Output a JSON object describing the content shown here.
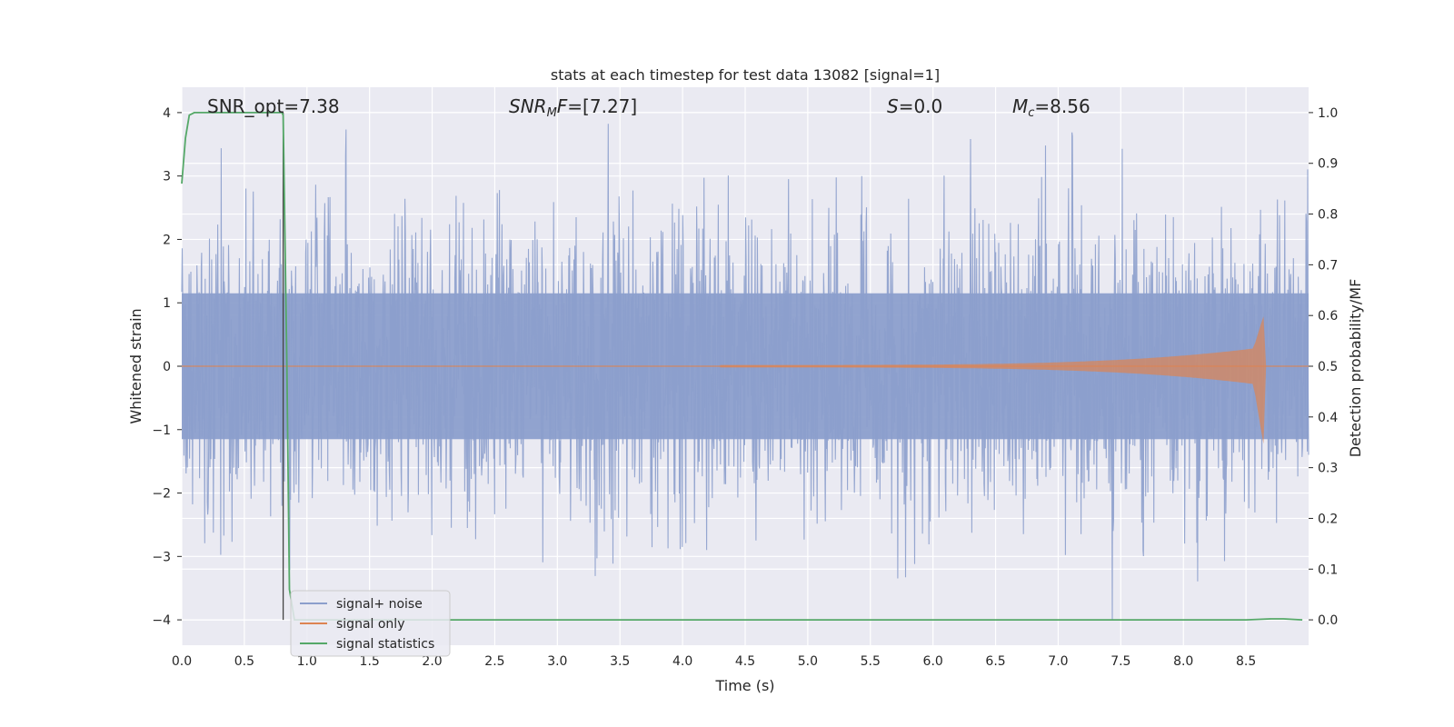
{
  "chart_data": {
    "type": "line",
    "title": "stats at each timestep for test data 13082 [signal=1]",
    "xlabel": "Time (s)",
    "ylabel": "Whitened strain",
    "ylabel_right": "Detection probability/MF",
    "xlim": [
      0,
      9
    ],
    "ylim": [
      -4.4,
      4.4
    ],
    "ylim_right": [
      -0.05,
      1.05
    ],
    "x_ticks": [
      "0.0",
      "0.5",
      "1.0",
      "1.5",
      "2.0",
      "2.5",
      "3.0",
      "3.5",
      "4.0",
      "4.5",
      "5.0",
      "5.5",
      "6.0",
      "6.5",
      "7.0",
      "7.5",
      "8.0",
      "8.5"
    ],
    "y_ticks": [
      "−4",
      "−3",
      "−2",
      "−1",
      "0",
      "1",
      "2",
      "3",
      "4"
    ],
    "y_ticks_right": [
      "0.0",
      "0.1",
      "0.2",
      "0.3",
      "0.4",
      "0.5",
      "0.6",
      "0.7",
      "0.8",
      "0.9",
      "1.0"
    ],
    "grid": true,
    "legend_position": "lower-left",
    "annotations": [
      "SNR_opt=7.38",
      "SNR_MF=[7.27]",
      "S=0.0",
      "M_c=8.56"
    ],
    "vline_x": 0.81,
    "series": [
      {
        "name": "signal+ noise",
        "color": "#8c9fcc",
        "kind": "noise",
        "amplitude_sigma": 1.0,
        "range": [
          -4.0,
          4.0
        ]
      },
      {
        "name": "signal only",
        "color": "#dd8452",
        "kind": "chirp",
        "start_x": 4.3,
        "merger_x": 8.64,
        "peak_high": 0.8,
        "peak_low": -1.25
      },
      {
        "name": "signal statistics",
        "color": "#55a868",
        "axis": "right",
        "x": [
          0.0,
          0.03,
          0.06,
          0.1,
          0.15,
          0.3,
          0.5,
          0.7,
          0.8,
          0.81,
          0.84,
          0.86,
          0.9,
          1.0,
          2.0,
          3.0,
          4.0,
          5.0,
          6.0,
          7.0,
          8.0,
          8.5,
          8.7,
          8.8,
          8.95
        ],
        "values": [
          0.86,
          0.95,
          0.995,
          1.0,
          1.0,
          1.0,
          1.0,
          1.0,
          1.0,
          0.995,
          0.5,
          0.06,
          0.0,
          0.0,
          0.0,
          0.0,
          0.0,
          0.0,
          0.0,
          0.0,
          0.0,
          0.0,
          0.002,
          0.002,
          0.0
        ]
      }
    ]
  }
}
